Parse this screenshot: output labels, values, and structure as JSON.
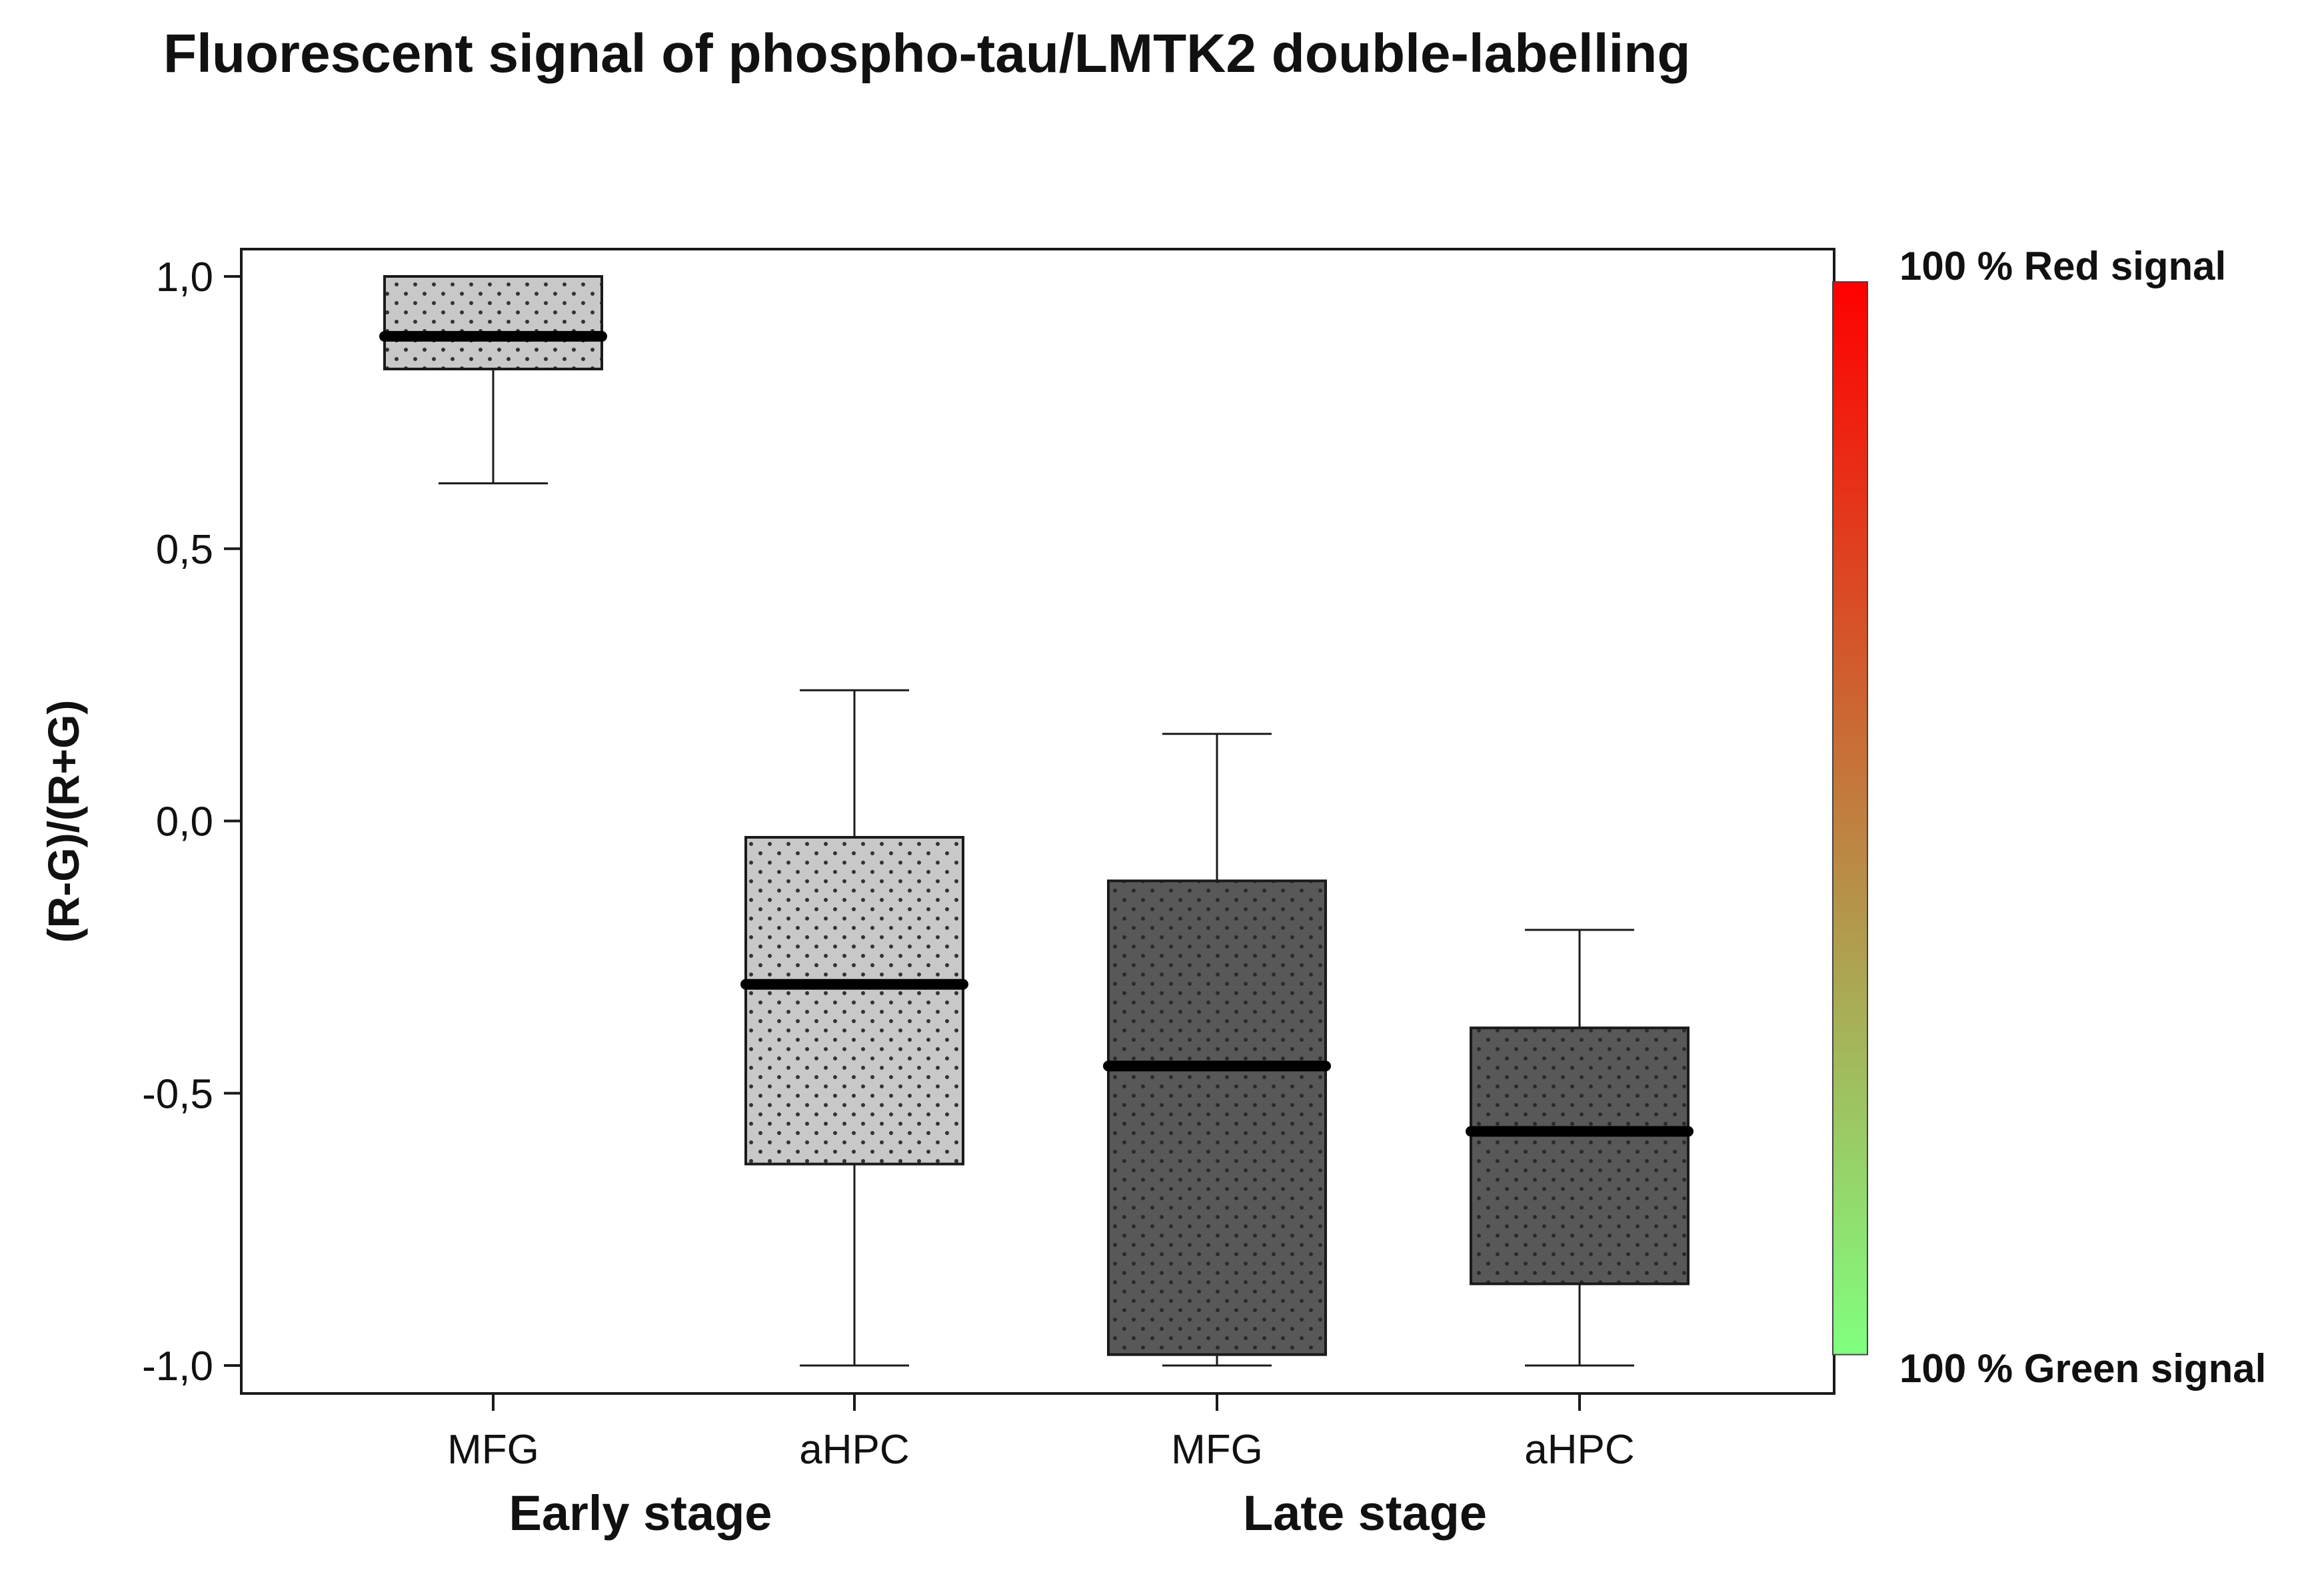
{
  "chart_data": {
    "type": "box",
    "title": "Fluorescent signal of phospho-tau/LMTK2 double-labelling",
    "ylabel": "(R-G)/(R+G)",
    "xlabel": "",
    "ylim": [
      -1.05,
      1.05
    ],
    "yticks": [
      1.0,
      0.5,
      0.0,
      -0.5,
      -1.0
    ],
    "ytick_labels": [
      "1,0",
      "0,5",
      "0,0",
      "-0,5",
      "-1,0"
    ],
    "categories": [
      "MFG",
      "aHPC",
      "MFG",
      "aHPC"
    ],
    "groups": [
      {
        "label": "Early stage",
        "members": [
          0,
          1
        ]
      },
      {
        "label": "Late stage",
        "members": [
          2,
          3
        ]
      }
    ],
    "boxes": [
      {
        "category": "MFG",
        "group": "Early stage",
        "whisker_low": 0.62,
        "q1": 0.83,
        "median": 0.89,
        "q3": 1.0,
        "whisker_high": 1.0,
        "fill": "#c8c8c8"
      },
      {
        "category": "aHPC",
        "group": "Early stage",
        "whisker_low": -1.0,
        "q1": -0.63,
        "median": -0.3,
        "q3": -0.03,
        "whisker_high": 0.24,
        "fill": "#c8c8c8"
      },
      {
        "category": "MFG",
        "group": "Late stage",
        "whisker_low": -1.0,
        "q1": -0.98,
        "median": -0.45,
        "q3": -0.11,
        "whisker_high": 0.16,
        "fill": "#585858"
      },
      {
        "category": "aHPC",
        "group": "Late stage",
        "whisker_low": -1.0,
        "q1": -0.85,
        "median": -0.57,
        "q3": -0.38,
        "whisker_high": -0.2,
        "fill": "#585858"
      }
    ],
    "colorbar": {
      "top_label": "100 % Red signal",
      "bottom_label": "100 % Green signal",
      "top_color": "#ff0000",
      "bottom_color": "#80ff80",
      "range": [
        -0.98,
        0.99
      ]
    },
    "grid": false,
    "legend": "none"
  }
}
